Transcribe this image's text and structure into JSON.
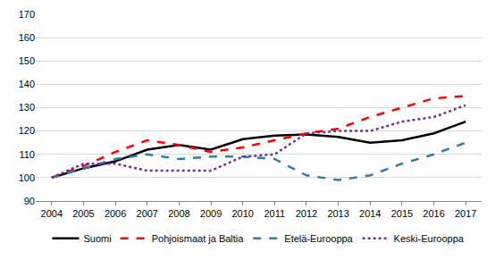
{
  "chart_data": {
    "type": "line",
    "categories": [
      "2004",
      "2005",
      "2006",
      "2007",
      "2008",
      "2009",
      "2010",
      "2011",
      "2012",
      "2013",
      "2014",
      "2015",
      "2016",
      "2017"
    ],
    "series": [
      {
        "name": "Suomi",
        "color": "#000000",
        "line_style": "solid",
        "values": [
          100,
          104,
          107,
          112,
          114,
          112,
          116.5,
          118,
          118.5,
          117.5,
          115,
          116,
          119,
          124
        ]
      },
      {
        "name": "Pohjoismaat ja Baltia",
        "color": "#ff0000",
        "line_style": "dash",
        "values": [
          100,
          105,
          111,
          116,
          114,
          111,
          113,
          116,
          119,
          121,
          126,
          130,
          134,
          135
        ]
      },
      {
        "name": "Etelä-Eurooppa",
        "color": "#2a7fad",
        "line_style": "dash",
        "values": [
          100,
          104,
          108,
          110,
          108,
          109,
          109,
          108,
          101,
          99,
          101,
          106,
          110,
          115
        ]
      },
      {
        "name": "Keski-Eurooppa",
        "color": "#7030a0",
        "line_style": "dot",
        "values": [
          100,
          106,
          106,
          103,
          103,
          103,
          109,
          110,
          119,
          120,
          120,
          124,
          126,
          131
        ]
      }
    ],
    "ylim": [
      90,
      170
    ],
    "yticks": [
      90,
      100,
      110,
      120,
      130,
      140,
      150,
      160,
      170
    ],
    "grid": true,
    "legend": "bottom"
  }
}
